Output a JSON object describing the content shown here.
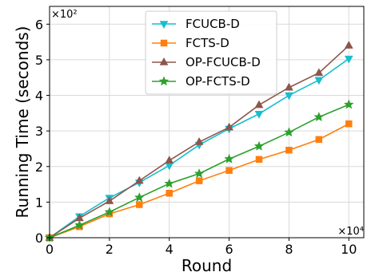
{
  "chart_data": {
    "type": "line",
    "xlabel": "Round",
    "ylabel": "Running Time (seconds)",
    "x_multiplier": "×10⁴",
    "y_multiplier": "×10²",
    "x": [
      0,
      1,
      2,
      3,
      4,
      5,
      6,
      7,
      8,
      9,
      10
    ],
    "xlim": [
      0,
      10.5
    ],
    "ylim": [
      0,
      6.5
    ],
    "x_ticks": [
      0,
      2,
      4,
      6,
      8,
      10
    ],
    "y_ticks": [
      0,
      1,
      2,
      3,
      4,
      5,
      6
    ],
    "grid": true,
    "legend_position": "top-center",
    "series": [
      {
        "name": "FCUCB-D",
        "color": "#17becf",
        "marker": "triangle-down",
        "values": [
          0,
          0.6,
          1.12,
          1.55,
          2.03,
          2.61,
          3.06,
          3.48,
          4.0,
          4.43,
          5.03
        ]
      },
      {
        "name": "FCTS-D",
        "color": "#ff7f0e",
        "marker": "square",
        "values": [
          0,
          0.31,
          0.67,
          0.93,
          1.25,
          1.6,
          1.89,
          2.2,
          2.46,
          2.76,
          3.2
        ]
      },
      {
        "name": "OP-FCUCB-D",
        "color": "#8c564b",
        "marker": "triangle-up",
        "values": [
          0,
          0.55,
          1.03,
          1.6,
          2.17,
          2.69,
          3.1,
          3.73,
          4.22,
          4.63,
          5.4
        ]
      },
      {
        "name": "OP-FCTS-D",
        "color": "#2ca02c",
        "marker": "star",
        "values": [
          0,
          0.35,
          0.72,
          1.13,
          1.52,
          1.8,
          2.21,
          2.57,
          2.96,
          3.39,
          3.74
        ]
      }
    ]
  }
}
